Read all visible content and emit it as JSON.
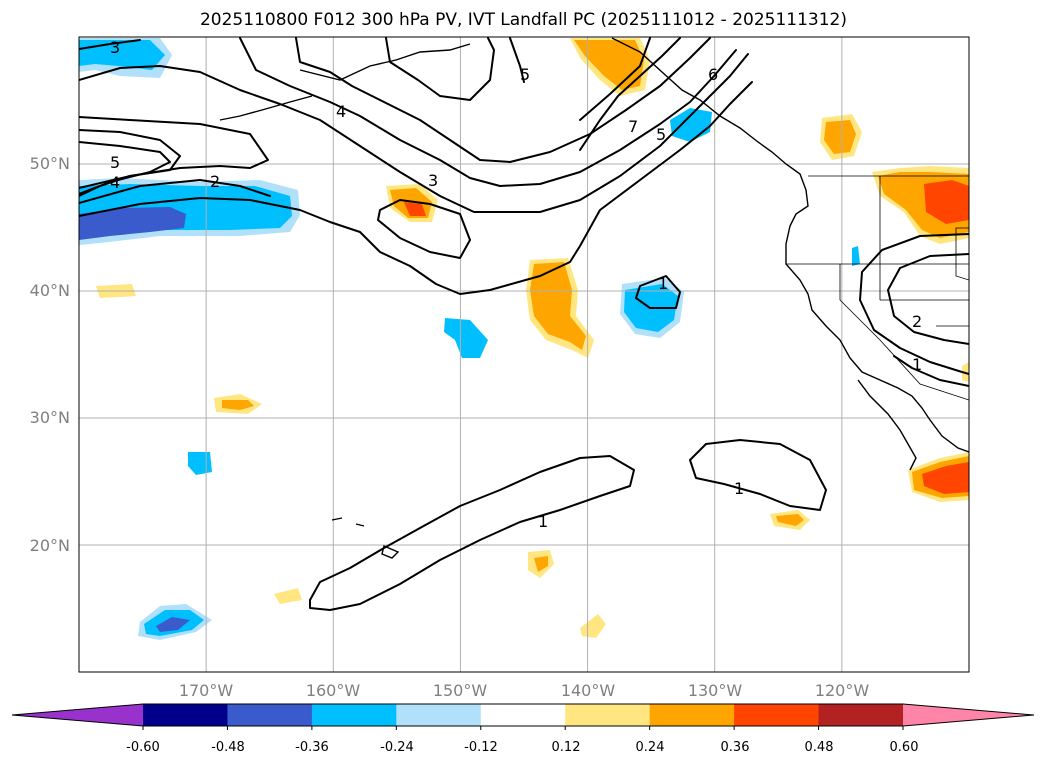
{
  "title": "2025110800 F012 300 hPa PV, IVT Landfall PC (2025111012 - 2025111312)",
  "map": {
    "lon_range": [
      -180,
      -110
    ],
    "lat_range": [
      10,
      60
    ],
    "lon_ticks": [
      "170°W",
      "160°W",
      "150°W",
      "140°W",
      "130°W",
      "120°W"
    ],
    "lat_ticks": [
      "50°N",
      "40°N",
      "30°N",
      "20°N"
    ],
    "grid": true,
    "coastlines": true,
    "country_and_state_borders": true
  },
  "contours": {
    "field": "300 hPa PV",
    "color": "#000000",
    "labels": [
      "3",
      "5",
      "4",
      "2",
      "4",
      "3",
      "5",
      "7",
      "5",
      "6",
      "1",
      "1",
      "1",
      "2",
      "1"
    ]
  },
  "colorbar": {
    "ticks": [
      "-0.60",
      "-0.48",
      "-0.36",
      "-0.24",
      "-0.12",
      "0.12",
      "0.24",
      "0.36",
      "0.48",
      "0.60"
    ],
    "colors": [
      "#9932cc",
      "#00008b",
      "#3a5bcc",
      "#00bfff",
      "#b0e0fa",
      "#ffffff",
      "#ffe680",
      "#ffa500",
      "#ff4500",
      "#b22222",
      "#ff85a8"
    ],
    "extend": "both"
  }
}
